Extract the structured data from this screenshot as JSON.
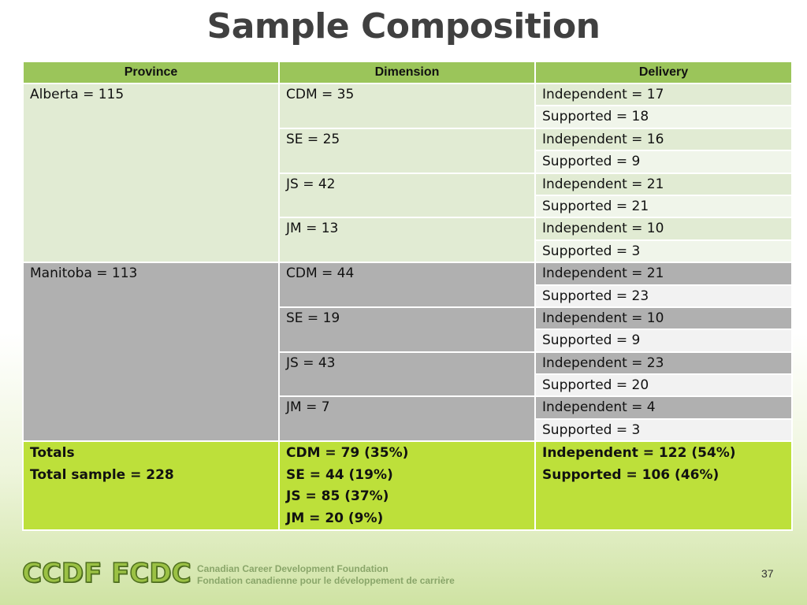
{
  "title": "Sample Composition",
  "headers": [
    "Province",
    "Dimension",
    "Delivery"
  ],
  "alberta": {
    "label": "Alberta = 115",
    "rows": [
      {
        "dim": "CDM = 35",
        "ind": "Independent = 17",
        "sup": "Supported = 18"
      },
      {
        "dim": "SE = 25",
        "ind": "Independent = 16",
        "sup": "Supported = 9"
      },
      {
        "dim": "JS = 42",
        "ind": "Independent = 21",
        "sup": "Supported = 21"
      },
      {
        "dim": "JM = 13",
        "ind": "Independent = 10",
        "sup": "Supported = 3"
      }
    ]
  },
  "manitoba": {
    "label": "Manitoba = 113",
    "rows": [
      {
        "dim": "CDM = 44",
        "ind": "Independent = 21",
        "sup": "Supported = 23"
      },
      {
        "dim": "SE = 19",
        "ind": "Independent = 10",
        "sup": "Supported = 9"
      },
      {
        "dim": "JS = 43",
        "ind": "Independent = 23",
        "sup": "Supported = 20"
      },
      {
        "dim": "JM = 7",
        "ind": "Independent = 4",
        "sup": "Supported = 3"
      }
    ]
  },
  "totals": {
    "col1": [
      "Totals",
      "Total sample = 228"
    ],
    "col2": [
      "CDM = 79 (35%)",
      "SE = 44 (19%)",
      "JS = 85 (37%)",
      "JM = 20 (9%)"
    ],
    "col3": [
      "Independent = 122 (54%)",
      "Supported = 106 (46%)"
    ]
  },
  "footer": {
    "logo": "CCDF FCDC",
    "line1": "Canadian Career Development Foundation",
    "line2": "Fondation canadienne pour le développement de carrière",
    "page": "37"
  },
  "colors": {
    "header_green": "#9bc55a",
    "alberta_green": "#e1ebd3",
    "manitoba_gray": "#b0b0b0",
    "totals_lime": "#bde03a",
    "title_gray": "#404040"
  }
}
